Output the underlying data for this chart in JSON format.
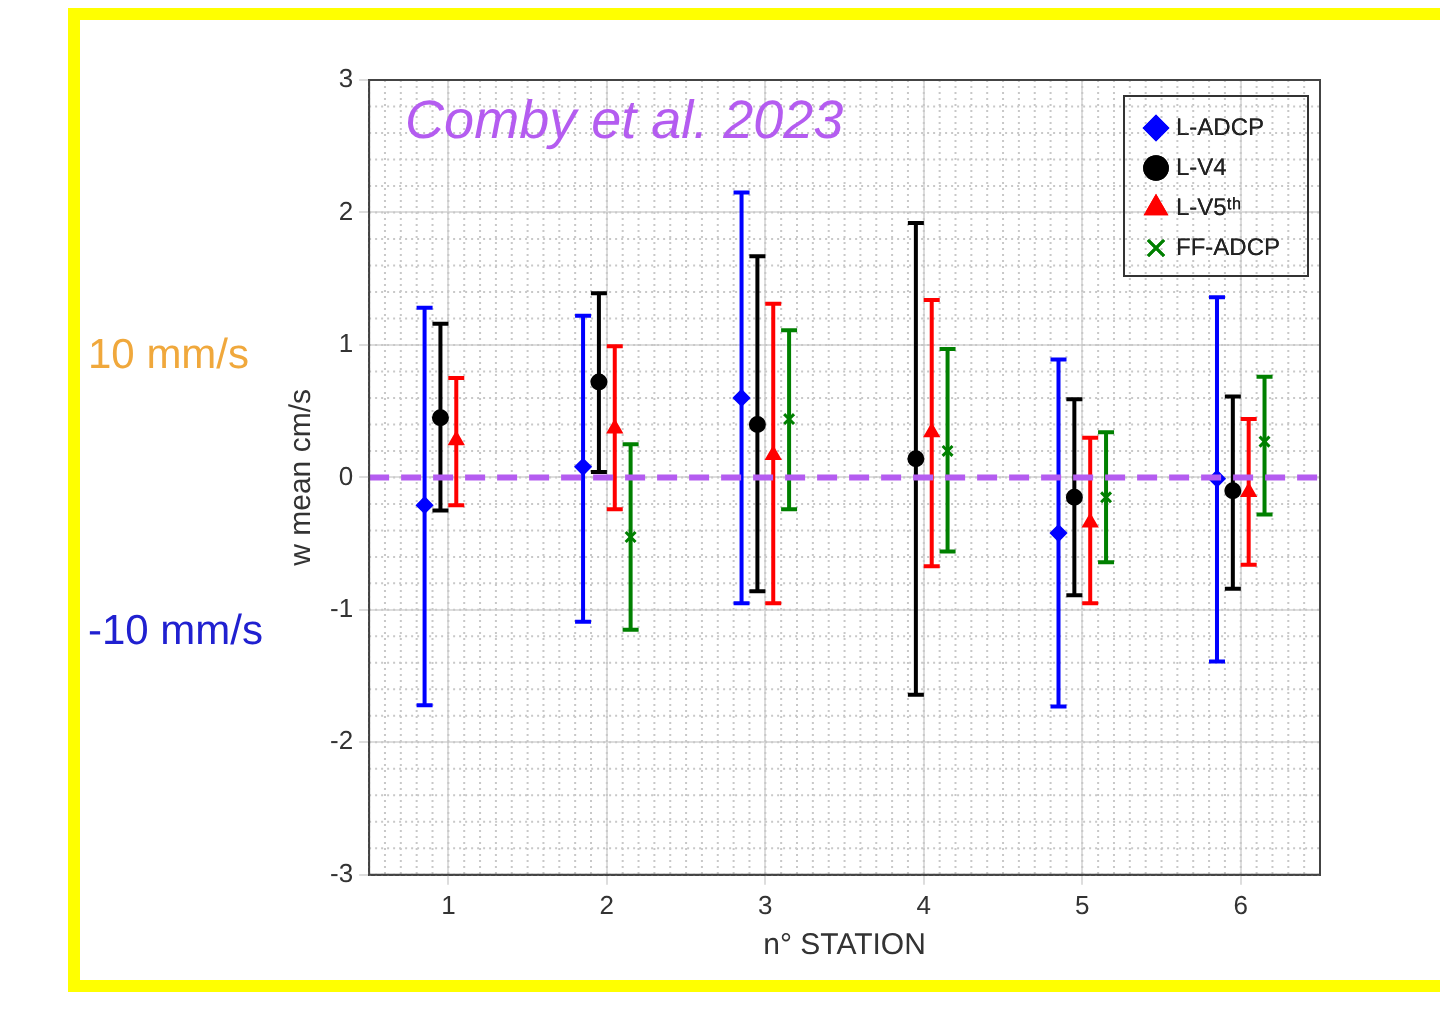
{
  "chart_data": {
    "type": "scatter",
    "xlabel": "n° STATION",
    "ylabel": "w mean cm/s",
    "xlim": [
      0.5,
      6.5
    ],
    "ylim": [
      -3,
      3
    ],
    "xticks": [
      1,
      2,
      3,
      4,
      5,
      6
    ],
    "yticks": [
      -3,
      -2,
      -1,
      0,
      1,
      2,
      3
    ],
    "grid": true,
    "legend": "top right",
    "series": [
      {
        "name": "L-ADCP",
        "color": "#0000ff",
        "marker": "diamond",
        "x": [
          0.85,
          1.85,
          2.85,
          null,
          4.85,
          5.85
        ],
        "values": [
          -0.21,
          0.08,
          0.6,
          null,
          -0.42,
          -0.01
        ],
        "errors": [
          [
            -1.72,
            1.28
          ],
          [
            -1.09,
            1.22
          ],
          [
            -0.95,
            2.15
          ],
          null,
          [
            -1.73,
            0.89
          ],
          [
            -1.39,
            1.36
          ]
        ]
      },
      {
        "name": "L-V4",
        "color": "#000000",
        "marker": "circle",
        "x": [
          0.95,
          1.95,
          2.95,
          3.95,
          4.95,
          5.95
        ],
        "values": [
          0.45,
          0.72,
          0.4,
          0.14,
          -0.15,
          -0.1
        ],
        "errors": [
          [
            -0.25,
            1.16
          ],
          [
            0.04,
            1.39
          ],
          [
            -0.86,
            1.67
          ],
          [
            -1.64,
            1.92
          ],
          [
            -0.89,
            0.59
          ],
          [
            -0.84,
            0.61
          ]
        ]
      },
      {
        "name": "L-V5ᵗʰ",
        "color": "#ff0000",
        "marker": "triangle",
        "x": [
          1.05,
          2.05,
          3.05,
          4.05,
          5.05,
          6.05
        ],
        "values": [
          0.28,
          0.37,
          0.17,
          0.34,
          -0.34,
          -0.11
        ],
        "errors": [
          [
            -0.21,
            0.75
          ],
          [
            -0.24,
            0.99
          ],
          [
            -0.95,
            1.31
          ],
          [
            -0.67,
            1.34
          ],
          [
            -0.95,
            0.3
          ],
          [
            -0.66,
            0.44
          ]
        ]
      },
      {
        "name": "FF-ADCP",
        "color": "#008000",
        "marker": "cross",
        "x": [
          null,
          2.15,
          3.15,
          4.15,
          5.15,
          6.15
        ],
        "values": [
          null,
          -0.45,
          0.44,
          0.2,
          -0.15,
          0.27
        ],
        "errors": [
          null,
          [
            -1.15,
            0.25
          ],
          [
            -0.24,
            1.11
          ],
          [
            -0.56,
            0.97
          ],
          [
            -0.64,
            0.34
          ],
          [
            -0.28,
            0.76
          ]
        ]
      }
    ],
    "ref_lines": [
      {
        "axis": "y",
        "value": 0,
        "color": "#b45cf0",
        "line_style": "dashed"
      }
    ],
    "annotations": [
      "Comby et al. 2023",
      "10 mm/s",
      "-10 mm/s"
    ]
  }
}
